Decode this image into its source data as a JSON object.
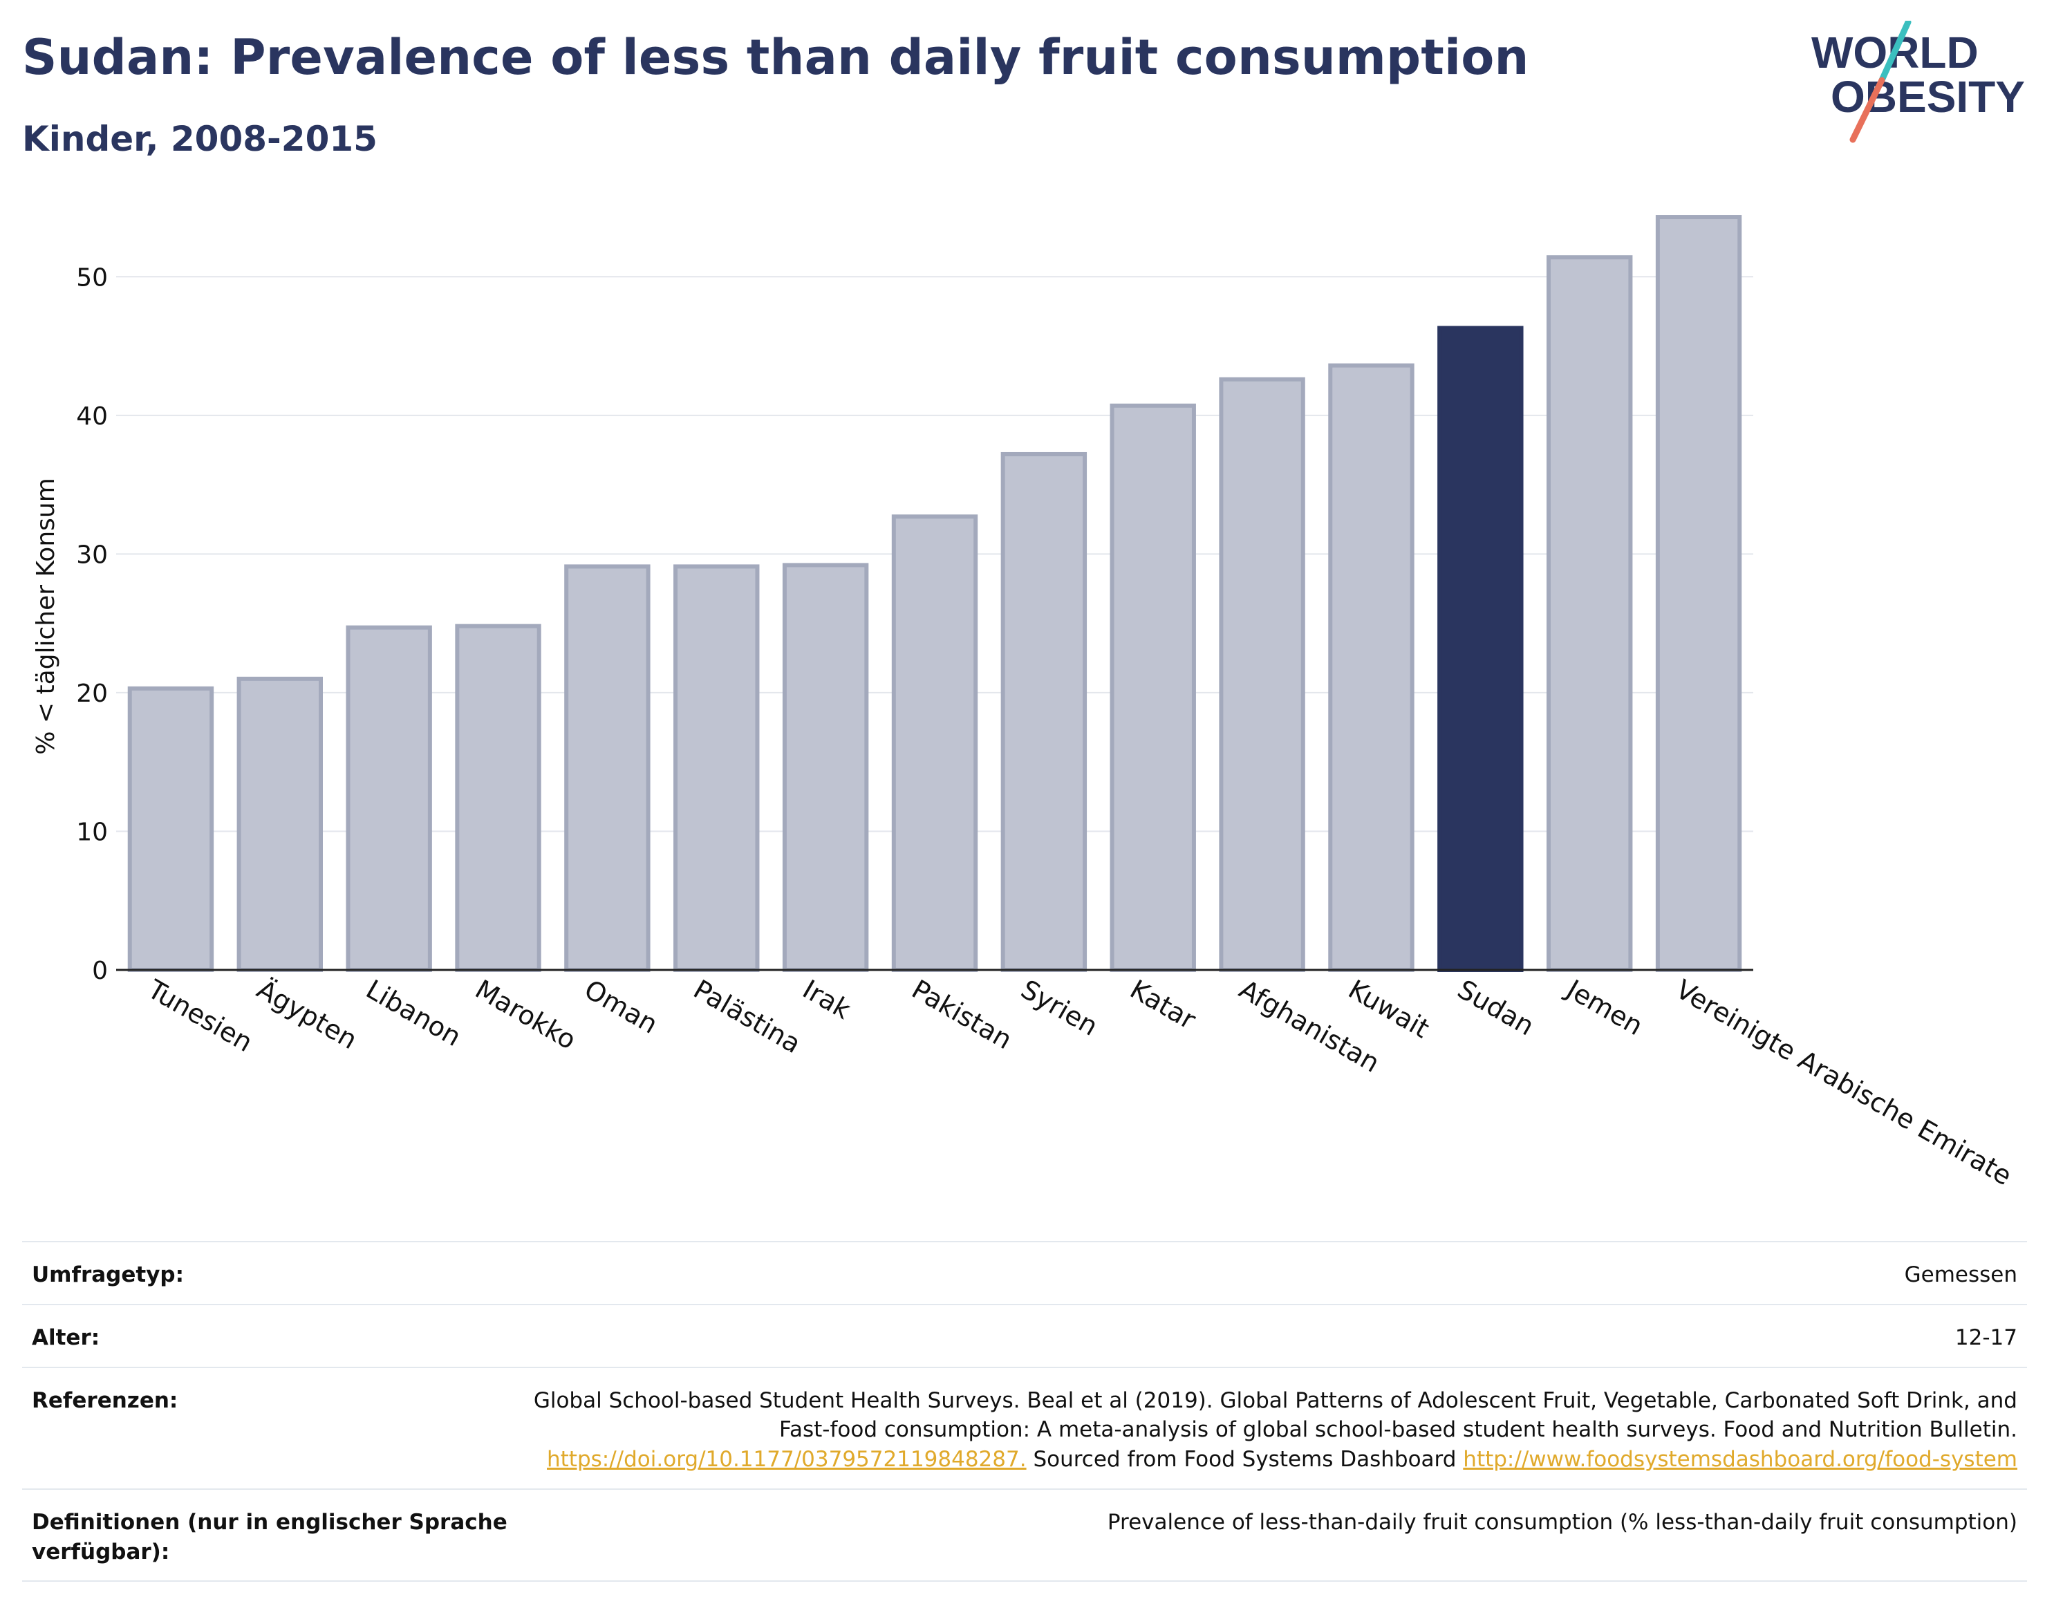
{
  "header": {
    "title": "Sudan: Prevalence of less than daily fruit consumption",
    "subtitle": "Kinder, 2008-2015"
  },
  "logo": {
    "line1": "WORLD",
    "line2": "OBESITY",
    "accent_colors": [
      "#3bbfbf",
      "#e8705a"
    ]
  },
  "colors": {
    "highlight_bar": "#2a355f",
    "other_bar_fill": "#bfc3d1",
    "other_bar_border": "#a3a9bc",
    "text_dark": "#2a355f",
    "link": "#e0a92b"
  },
  "chart_data": {
    "type": "bar",
    "ylabel": "% < täglicher Konsum",
    "xlabel": "",
    "ylim": [
      0,
      55
    ],
    "yticks": [
      0,
      10,
      20,
      30,
      40,
      50
    ],
    "grid": true,
    "highlight": "Sudan",
    "categories": [
      "Tunesien",
      "Ägypten",
      "Libanon",
      "Marokko",
      "Oman",
      "Palästina",
      "Irak",
      "Pakistan",
      "Syrien",
      "Katar",
      "Afghanistan",
      "Kuwait",
      "Sudan",
      "Jemen",
      "Vereinigte Arabische Emirate"
    ],
    "values": [
      20.3,
      21.0,
      24.7,
      24.8,
      29.1,
      29.1,
      29.2,
      32.7,
      37.2,
      40.7,
      42.6,
      43.6,
      46.3,
      51.4,
      54.3
    ]
  },
  "info": {
    "survey_label": "Umfragetyp:",
    "survey_value": "Gemessen",
    "age_label": "Alter:",
    "age_value": "12-17",
    "refs_label": "Referenzen:",
    "refs_text_1": "Global School-based Student Health Surveys. Beal et al (2019). Global Patterns of Adolescent Fruit, Vegetable, Carbonated Soft Drink, and Fast-food consumption: A meta-analysis of global school-based student health surveys. Food and Nutrition Bulletin.",
    "refs_link_1": "https://doi.org/10.1177/0379572119848287.",
    "refs_text_2": "Sourced from Food Systems Dashboard",
    "refs_link_2": "http://www.foodsystemsdashboard.org/food-system",
    "defs_label": "Definitionen (nur in englischer Sprache verfügbar):",
    "defs_value": "Prevalence of less-than-daily fruit consumption (% less-than-daily fruit consumption)"
  }
}
